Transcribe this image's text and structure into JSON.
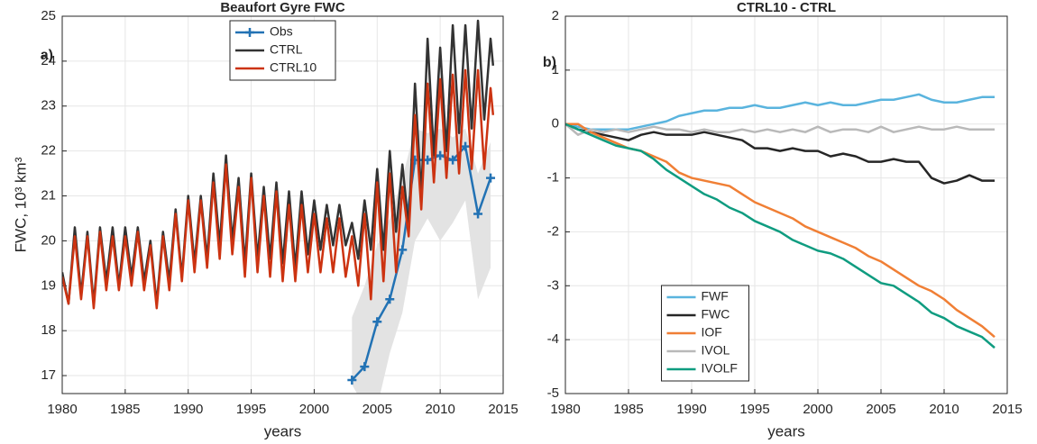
{
  "chart_data": [
    {
      "type": "line",
      "title": "Beaufort Gyre FWC",
      "xlabel": "years",
      "ylabel": "FWC, 10³ km³",
      "annotations": [
        "a)"
      ],
      "xlim": [
        1980,
        2015
      ],
      "xticks": [
        1980,
        1985,
        1990,
        1995,
        2000,
        2005,
        2010,
        2015
      ],
      "ylim": [
        16.6,
        25
      ],
      "yticks": [
        17,
        18,
        19,
        20,
        21,
        22,
        23,
        24,
        25
      ],
      "grid": true,
      "legend": "north",
      "band": {
        "color": "#e3e3e3",
        "x": [
          2003,
          2004,
          2005,
          2006,
          2007,
          2008,
          2009,
          2010,
          2011,
          2012,
          2013,
          2014
        ],
        "lower": [
          16.8,
          16.3,
          16.3,
          17.5,
          18.4,
          20.0,
          20.5,
          20.0,
          20.4,
          20.9,
          18.7,
          19.4
        ],
        "upper": [
          18.3,
          19.0,
          19.9,
          20.5,
          21.4,
          22.5,
          22.4,
          22.5,
          22.3,
          22.5,
          21.5,
          22.2
        ]
      },
      "series": [
        {
          "name": "Obs",
          "color": "#2272b4",
          "marker": "+",
          "x": [
            2003,
            2004,
            2005,
            2006,
            2007,
            2008,
            2009,
            2010,
            2011,
            2012,
            2013,
            2014
          ],
          "values": [
            16.9,
            17.2,
            18.2,
            18.7,
            19.8,
            21.8,
            21.8,
            21.9,
            21.8,
            22.1,
            20.6,
            21.4
          ]
        },
        {
          "name": "CTRL",
          "color": "#333333",
          "x": [
            1980,
            1980.5,
            1981,
            1981.5,
            1982,
            1982.5,
            1983,
            1983.5,
            1984,
            1984.5,
            1985,
            1985.5,
            1986,
            1986.5,
            1987,
            1987.5,
            1988,
            1988.5,
            1989,
            1989.5,
            1990,
            1990.5,
            1991,
            1991.5,
            1992,
            1992.5,
            1993,
            1993.5,
            1994,
            1994.5,
            1995,
            1995.5,
            1996,
            1996.5,
            1997,
            1997.5,
            1998,
            1998.5,
            1999,
            1999.5,
            2000,
            2000.5,
            2001,
            2001.5,
            2002,
            2002.5,
            2003,
            2003.5,
            2004,
            2004.5,
            2005,
            2005.5,
            2006,
            2006.5,
            2007,
            2007.5,
            2008,
            2008.5,
            2009,
            2009.5,
            2010,
            2010.5,
            2011,
            2011.5,
            2012,
            2012.5,
            2013,
            2013.5,
            2014,
            2014.2
          ],
          "values": [
            19.3,
            18.6,
            20.3,
            18.8,
            20.2,
            18.6,
            20.3,
            19.1,
            20.3,
            19.0,
            20.3,
            19.2,
            20.3,
            19.1,
            20.0,
            18.6,
            20.2,
            19.1,
            20.7,
            19.2,
            21.0,
            19.5,
            21.0,
            19.6,
            21.5,
            19.9,
            21.9,
            20.0,
            21.4,
            19.5,
            21.5,
            19.6,
            21.2,
            19.6,
            21.3,
            19.5,
            21.1,
            19.4,
            21.1,
            19.7,
            20.9,
            19.8,
            20.8,
            19.9,
            20.8,
            19.9,
            20.4,
            19.6,
            20.9,
            19.8,
            21.6,
            19.8,
            22.0,
            20.2,
            21.7,
            20.3,
            23.5,
            21.0,
            24.5,
            21.9,
            24.3,
            22.0,
            24.8,
            22.4,
            24.8,
            22.5,
            24.9,
            22.7,
            24.5,
            23.9
          ]
        },
        {
          "name": "CTRL10",
          "color": "#cc3311",
          "x": [
            1980,
            1980.5,
            1981,
            1981.5,
            1982,
            1982.5,
            1983,
            1983.5,
            1984,
            1984.5,
            1985,
            1985.5,
            1986,
            1986.5,
            1987,
            1987.5,
            1988,
            1988.5,
            1989,
            1989.5,
            1990,
            1990.5,
            1991,
            1991.5,
            1992,
            1992.5,
            1993,
            1993.5,
            1994,
            1994.5,
            1995,
            1995.5,
            1996,
            1996.5,
            1997,
            1997.5,
            1998,
            1998.5,
            1999,
            1999.5,
            2000,
            2000.5,
            2001,
            2001.5,
            2002,
            2002.5,
            2003,
            2003.5,
            2004,
            2004.5,
            2005,
            2005.5,
            2006,
            2006.5,
            2007,
            2007.5,
            2008,
            2008.5,
            2009,
            2009.5,
            2010,
            2010.5,
            2011,
            2011.5,
            2012,
            2012.5,
            2013,
            2013.5,
            2014,
            2014.2
          ],
          "values": [
            19.2,
            18.6,
            20.1,
            18.7,
            20.1,
            18.5,
            20.2,
            18.9,
            20.1,
            18.9,
            20.1,
            19.0,
            20.2,
            18.9,
            19.9,
            18.5,
            20.1,
            18.9,
            20.6,
            19.1,
            20.9,
            19.3,
            20.9,
            19.4,
            21.3,
            19.6,
            21.7,
            19.7,
            21.2,
            19.2,
            21.4,
            19.3,
            21.0,
            19.2,
            21.1,
            19.1,
            20.8,
            19.1,
            20.8,
            19.3,
            20.6,
            19.3,
            20.5,
            19.3,
            20.5,
            19.2,
            20.1,
            19.0,
            20.6,
            18.7,
            21.3,
            19.1,
            21.5,
            19.3,
            21.2,
            20.1,
            22.8,
            20.7,
            23.5,
            21.3,
            23.6,
            21.4,
            23.7,
            21.5,
            23.8,
            21.6,
            23.8,
            21.6,
            23.4,
            22.8
          ]
        }
      ]
    },
    {
      "type": "line",
      "title": "CTRL10 - CTRL",
      "xlabel": "years",
      "annotations": [
        "b)"
      ],
      "xlim": [
        1980,
        2015
      ],
      "xticks": [
        1980,
        1985,
        1990,
        1995,
        2000,
        2005,
        2010,
        2015
      ],
      "ylim": [
        -5,
        2
      ],
      "yticks": [
        -5,
        -4,
        -3,
        -2,
        -1,
        0,
        1,
        2
      ],
      "grid": true,
      "legend": "south",
      "x": [
        1980,
        1981,
        1982,
        1983,
        1984,
        1985,
        1986,
        1987,
        1988,
        1989,
        1990,
        1991,
        1992,
        1993,
        1994,
        1995,
        1996,
        1997,
        1998,
        1999,
        2000,
        2001,
        2002,
        2003,
        2004,
        2005,
        2006,
        2007,
        2008,
        2009,
        2010,
        2011,
        2012,
        2013,
        2014
      ],
      "series": [
        {
          "name": "FWF",
          "color": "#5ab4de",
          "values": [
            0,
            -0.05,
            -0.1,
            -0.1,
            -0.1,
            -0.1,
            -0.05,
            0,
            0.05,
            0.15,
            0.2,
            0.25,
            0.25,
            0.3,
            0.3,
            0.35,
            0.3,
            0.3,
            0.35,
            0.4,
            0.35,
            0.4,
            0.35,
            0.35,
            0.4,
            0.45,
            0.45,
            0.5,
            0.55,
            0.45,
            0.4,
            0.4,
            0.45,
            0.5,
            0.5
          ]
        },
        {
          "name": "FWC",
          "color": "#262626",
          "values": [
            0,
            -0.1,
            -0.15,
            -0.2,
            -0.25,
            -0.3,
            -0.2,
            -0.15,
            -0.2,
            -0.2,
            -0.2,
            -0.15,
            -0.2,
            -0.25,
            -0.3,
            -0.45,
            -0.45,
            -0.5,
            -0.45,
            -0.5,
            -0.5,
            -0.6,
            -0.55,
            -0.6,
            -0.7,
            -0.7,
            -0.65,
            -0.7,
            -0.7,
            -1.0,
            -1.1,
            -1.05,
            -0.95,
            -1.05,
            -1.05
          ]
        },
        {
          "name": "IOF",
          "color": "#f07f35",
          "values": [
            0,
            0,
            -0.15,
            -0.25,
            -0.35,
            -0.45,
            -0.5,
            -0.6,
            -0.7,
            -0.9,
            -1.0,
            -1.05,
            -1.1,
            -1.15,
            -1.3,
            -1.45,
            -1.55,
            -1.65,
            -1.75,
            -1.9,
            -2.0,
            -2.1,
            -2.2,
            -2.3,
            -2.45,
            -2.55,
            -2.7,
            -2.85,
            -3.0,
            -3.1,
            -3.25,
            -3.45,
            -3.6,
            -3.75,
            -3.95
          ]
        },
        {
          "name": "IVOL",
          "color": "#b9b9b9",
          "values": [
            0,
            -0.2,
            -0.1,
            -0.15,
            -0.1,
            -0.15,
            -0.1,
            -0.05,
            -0.1,
            -0.1,
            -0.15,
            -0.1,
            -0.15,
            -0.15,
            -0.1,
            -0.15,
            -0.1,
            -0.15,
            -0.1,
            -0.15,
            -0.05,
            -0.15,
            -0.1,
            -0.1,
            -0.15,
            -0.05,
            -0.15,
            -0.1,
            -0.05,
            -0.1,
            -0.1,
            -0.05,
            -0.1,
            -0.1,
            -0.1
          ]
        },
        {
          "name": "IVOLF",
          "color": "#0f9c80",
          "values": [
            0,
            -0.1,
            -0.2,
            -0.3,
            -0.4,
            -0.45,
            -0.5,
            -0.65,
            -0.85,
            -1.0,
            -1.15,
            -1.3,
            -1.4,
            -1.55,
            -1.65,
            -1.8,
            -1.9,
            -2.0,
            -2.15,
            -2.25,
            -2.35,
            -2.4,
            -2.5,
            -2.65,
            -2.8,
            -2.95,
            -3.0,
            -3.15,
            -3.3,
            -3.5,
            -3.6,
            -3.75,
            -3.85,
            -3.95,
            -4.15
          ]
        }
      ]
    }
  ]
}
